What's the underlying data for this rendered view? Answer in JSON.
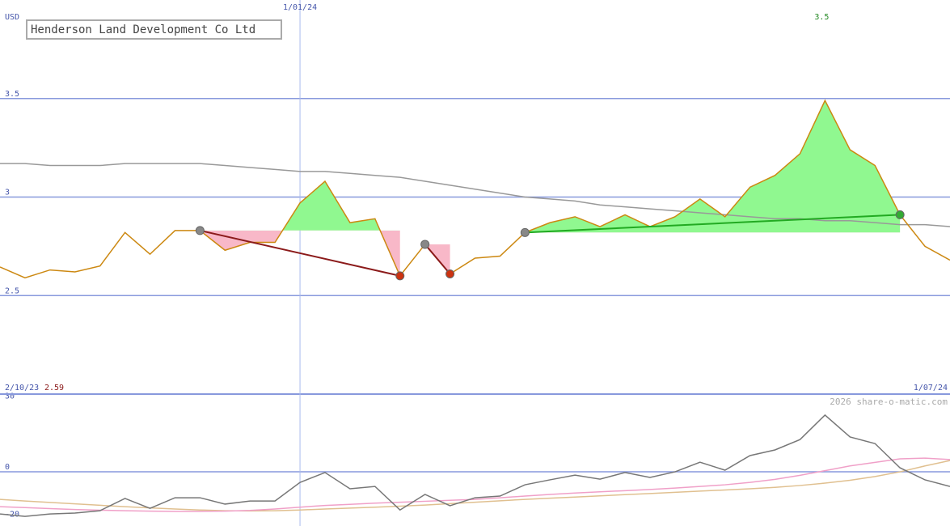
{
  "chart_data": [
    {
      "type": "line",
      "title": "Henderson Land Development Co Ltd",
      "y_label": "USD",
      "categories": [
        "2/10/23",
        null,
        null,
        null,
        null,
        null,
        null,
        null,
        null,
        null,
        null,
        null,
        "1/01/24",
        null,
        null,
        null,
        null,
        null,
        null,
        null,
        null,
        null,
        null,
        null,
        null,
        null,
        null,
        null,
        null,
        null,
        null,
        null,
        null,
        null,
        null,
        null,
        null,
        null,
        "1/07/24"
      ],
      "series": [
        {
          "color": "#cc8811",
          "values": [
            2.645,
            2.59,
            2.63,
            2.62,
            2.65,
            2.82,
            2.71,
            2.83,
            2.83,
            2.73,
            2.77,
            2.77,
            2.97,
            3.08,
            2.87,
            2.89,
            2.6,
            2.76,
            2.61,
            2.69,
            2.7,
            2.82,
            2.87,
            2.9,
            2.85,
            2.91,
            2.85,
            2.9,
            2.99,
            2.9,
            3.05,
            3.11,
            3.22,
            3.49,
            3.24,
            3.16,
            2.91,
            2.75,
            2.68
          ]
        },
        {
          "color": "#999999",
          "values": [
            3.17,
            3.17,
            3.16,
            3.16,
            3.16,
            3.17,
            3.17,
            3.17,
            3.17,
            3.16,
            3.15,
            3.14,
            3.13,
            3.13,
            3.12,
            3.11,
            3.1,
            3.08,
            3.06,
            3.04,
            3.02,
            3.0,
            2.99,
            2.98,
            2.96,
            2.95,
            2.94,
            2.93,
            2.92,
            2.91,
            2.9,
            2.89,
            2.89,
            2.88,
            2.88,
            2.87,
            2.86,
            2.86,
            2.85
          ]
        }
      ],
      "trends": [
        {
          "from": 8,
          "to": 16,
          "color": "#8b1a1a"
        },
        {
          "from": 17,
          "to": 18,
          "color": "#8b1a1a"
        },
        {
          "from": 21,
          "to": 36,
          "color": "#22aa22"
        }
      ],
      "up_fill": "#90f890",
      "down_fill": "#f8b8c8",
      "min_label": "2.59",
      "min_color": "#8b1a1a",
      "max_label": "3.5",
      "max_color": "#228822",
      "ylim": [
        2,
        4
      ],
      "yticks": [
        2.5,
        3,
        3.5
      ],
      "grid": true,
      "grid_color": "#8899dd"
    },
    {
      "type": "line",
      "watermark": "2026 share-o-matic.com",
      "series": [
        {
          "color": "#777777",
          "values": [
            -17.9,
            -18.9,
            -17.9,
            -17.5,
            -16.5,
            -11.3,
            -15.5,
            -11,
            -11,
            -13.7,
            -12.4,
            -12.4,
            -4.5,
            -0.3,
            -7.2,
            -6.2,
            -16.2,
            -9.6,
            -14.4,
            -11,
            -10.3,
            -5.5,
            -3.4,
            -1.4,
            -3.1,
            -0.3,
            -2.4,
            0,
            4.1,
            0.7,
            6.9,
            9.3,
            13.7,
            24.1,
            14.8,
            12,
            1.7,
            -3.4,
            -6.2
          ]
        },
        {
          "color": "#f0a0c8",
          "values": [
            -14.8,
            -15.2,
            -15.6,
            -16,
            -16.3,
            -16.5,
            -16.7,
            -16.8,
            -16.8,
            -16.7,
            -16.4,
            -15.8,
            -15,
            -14.3,
            -13.8,
            -13.3,
            -12.9,
            -12.5,
            -12.1,
            -11.7,
            -11,
            -10.3,
            -9.6,
            -9,
            -8.5,
            -8,
            -7.5,
            -6.9,
            -6.2,
            -5.5,
            -4.5,
            -3.2,
            -1.5,
            0.5,
            2.5,
            4,
            5.5,
            5.8,
            5.2
          ]
        },
        {
          "color": "#e0c090",
          "values": [
            -11.7,
            -12.4,
            -13,
            -13.6,
            -14.2,
            -14.8,
            -15.3,
            -15.8,
            -16.2,
            -16.5,
            -16.6,
            -16.5,
            -16.2,
            -15.8,
            -15.4,
            -15,
            -14.6,
            -14.1,
            -13.5,
            -12.9,
            -12.3,
            -11.7,
            -11.2,
            -10.7,
            -10.2,
            -9.7,
            -9.2,
            -8.7,
            -8.2,
            -7.7,
            -7.2,
            -6.6,
            -5.8,
            -4.8,
            -3.6,
            -2,
            0,
            2.5,
            4.8
          ]
        }
      ],
      "ylim": [
        -23,
        33
      ],
      "yticks": [
        -20,
        0,
        30
      ],
      "grid_color": "#8899dd"
    }
  ]
}
